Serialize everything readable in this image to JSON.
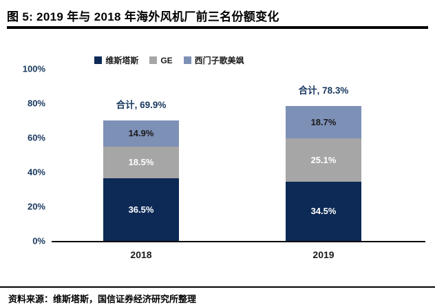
{
  "figure": {
    "title": "图 5: 2019 年与 2018 年海外风机厂前三名份额变化",
    "source": "资料来源：维斯塔斯，国信证券经济研究所整理"
  },
  "chart_data": {
    "type": "bar",
    "stacked": true,
    "categories": [
      "2018",
      "2019"
    ],
    "series": [
      {
        "name": "维斯塔斯",
        "color": "#0d2a56",
        "label_color": "#ffffff",
        "values": [
          36.5,
          34.5
        ]
      },
      {
        "name": "GE",
        "color": "#a6a6a6",
        "label_color": "#ffffff",
        "values": [
          18.5,
          25.1
        ]
      },
      {
        "name": "西门子歌美飒",
        "color": "#7d90b6",
        "label_color": "#1a1a1a",
        "values": [
          14.9,
          18.7
        ]
      }
    ],
    "totals": [
      "合计, 69.9%",
      "合计, 78.3%"
    ],
    "total_values": [
      69.9,
      78.3
    ],
    "segment_labels": [
      [
        "36.5%",
        "34.5%"
      ],
      [
        "18.5%",
        "25.1%"
      ],
      [
        "14.9%",
        "18.7%"
      ]
    ],
    "yticks": [
      "100%",
      "80%",
      "60%",
      "40%",
      "20%",
      "0%"
    ],
    "ylim": [
      0,
      100
    ],
    "grid": false,
    "legend_position": "top"
  }
}
